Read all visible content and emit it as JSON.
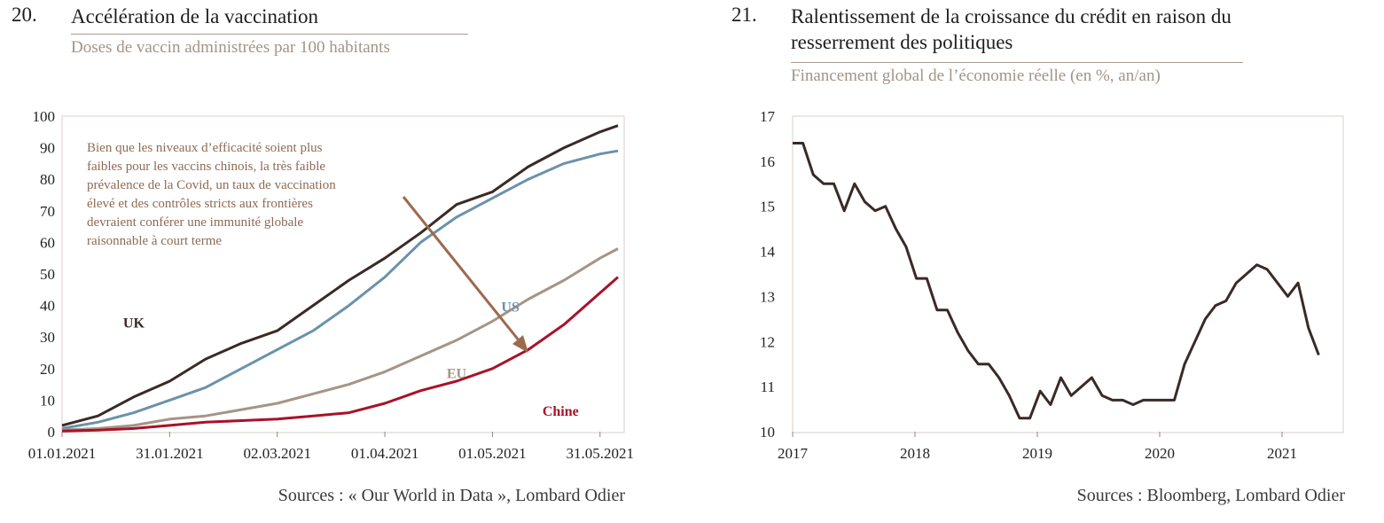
{
  "left": {
    "number": "20.",
    "title": "Accélération de la vaccination",
    "subtitle": "Doses de vaccin administrées par 100 habitants",
    "source": "Sources : « Our World in Data », Lombard Odier",
    "annotation": [
      "Bien que les niveaux d’efficacité soient plus",
      "faibles pour les vaccins chinois, la très faible",
      "prévalence de la Covid, un taux de vaccination",
      "élevé et des contrôles stricts aux frontières",
      "devraient conférer une immunité globale",
      "raisonnable à court terme"
    ],
    "chart_data": {
      "type": "line",
      "x_ticks": [
        "01.01.2021",
        "31.01.2021",
        "02.03.2021",
        "01.04.2021",
        "01.05.2021",
        "31.05.2021"
      ],
      "y_ticks": [
        "0",
        "10",
        "20",
        "30",
        "40",
        "50",
        "60",
        "70",
        "80",
        "90",
        "100"
      ],
      "ylim": [
        0,
        100
      ],
      "x_day_range": [
        0,
        155
      ],
      "series": [
        {
          "name": "UK",
          "color": "#3a2a26",
          "x": [
            0,
            10,
            20,
            30,
            40,
            50,
            60,
            70,
            80,
            90,
            100,
            110,
            120,
            130,
            140,
            150,
            155
          ],
          "y": [
            2,
            5,
            11,
            16,
            23,
            28,
            32,
            40,
            48,
            55,
            63,
            72,
            76,
            84,
            90,
            95,
            97
          ]
        },
        {
          "name": "US",
          "color": "#6b92ac",
          "x": [
            0,
            10,
            20,
            30,
            40,
            50,
            60,
            70,
            80,
            90,
            100,
            110,
            120,
            130,
            140,
            150,
            155
          ],
          "y": [
            1,
            3,
            6,
            10,
            14,
            20,
            26,
            32,
            40,
            49,
            60,
            68,
            74,
            80,
            85,
            88,
            89
          ]
        },
        {
          "name": "EU",
          "color": "#a69486",
          "x": [
            0,
            10,
            20,
            30,
            40,
            50,
            60,
            70,
            80,
            90,
            100,
            110,
            120,
            130,
            140,
            150,
            155
          ],
          "y": [
            0.5,
            1,
            2,
            4,
            5,
            7,
            9,
            12,
            15,
            19,
            24,
            29,
            35,
            42,
            48,
            55,
            58
          ]
        },
        {
          "name": "Chine",
          "color": "#a8122a",
          "x": [
            0,
            10,
            20,
            30,
            40,
            50,
            60,
            70,
            80,
            90,
            100,
            110,
            120,
            130,
            140,
            150,
            155
          ],
          "y": [
            0.2,
            0.5,
            1,
            2,
            3,
            3.5,
            4,
            5,
            6,
            9,
            13,
            16,
            20,
            26,
            34,
            44,
            49
          ]
        }
      ]
    }
  },
  "right": {
    "number": "21.",
    "title_lines": [
      "Ralentissement de la croissance du crédit en raison du",
      "resserrement des politiques"
    ],
    "subtitle": "Financement global de l’économie réelle (en %, an/an)",
    "source": "Sources : Bloomberg, Lombard Odier",
    "chart_data": {
      "type": "line",
      "x_ticks": [
        "2017",
        "2018",
        "2019",
        "2020",
        "2021"
      ],
      "y_ticks": [
        "10",
        "11",
        "12",
        "13",
        "14",
        "15",
        "16",
        "17"
      ],
      "ylim": [
        10,
        17
      ],
      "xlim": [
        2017,
        2021.5
      ],
      "series": [
        {
          "color": "#3a2a26",
          "values": [
            16.4,
            16.4,
            15.7,
            15.5,
            15.5,
            14.9,
            15.5,
            15.1,
            14.9,
            15.0,
            14.5,
            14.1,
            13.4,
            13.4,
            12.7,
            12.7,
            12.2,
            11.8,
            11.5,
            11.5,
            11.2,
            10.8,
            10.3,
            10.3,
            10.9,
            10.6,
            11.2,
            10.8,
            11.0,
            11.2,
            10.8,
            10.7,
            10.7,
            10.6,
            10.7,
            10.7,
            10.7,
            10.7,
            11.5,
            12.0,
            12.5,
            12.8,
            12.9,
            13.3,
            13.5,
            13.7,
            13.6,
            13.3,
            13.0,
            13.3,
            12.3,
            11.7
          ]
        }
      ]
    }
  }
}
